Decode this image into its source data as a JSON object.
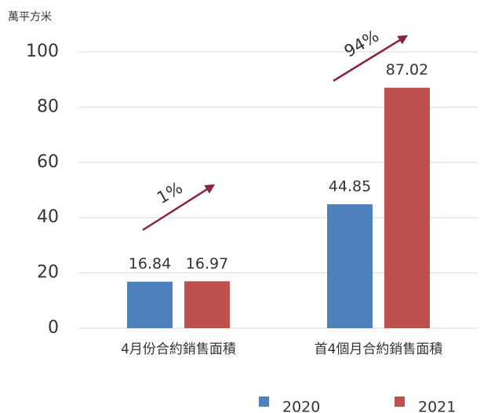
{
  "chart_data": {
    "type": "bar",
    "y_axis_label": "萬平方米",
    "categories": [
      "4月份合約銷售面積",
      "首4個月合約銷售面積"
    ],
    "series": [
      {
        "name": "2020",
        "color": "#4f81bd",
        "values": [
          16.84,
          44.85
        ]
      },
      {
        "name": "2021",
        "color": "#c0504d",
        "values": [
          16.97,
          87.02
        ]
      }
    ],
    "annotations": [
      {
        "text": "1%"
      },
      {
        "text": "94%"
      }
    ],
    "annotation_color": "#8b2346",
    "ylim": [
      0,
      100
    ],
    "yticks": [
      0,
      20,
      40,
      60,
      80,
      100
    ],
    "grid": true,
    "legend": "bottom"
  }
}
